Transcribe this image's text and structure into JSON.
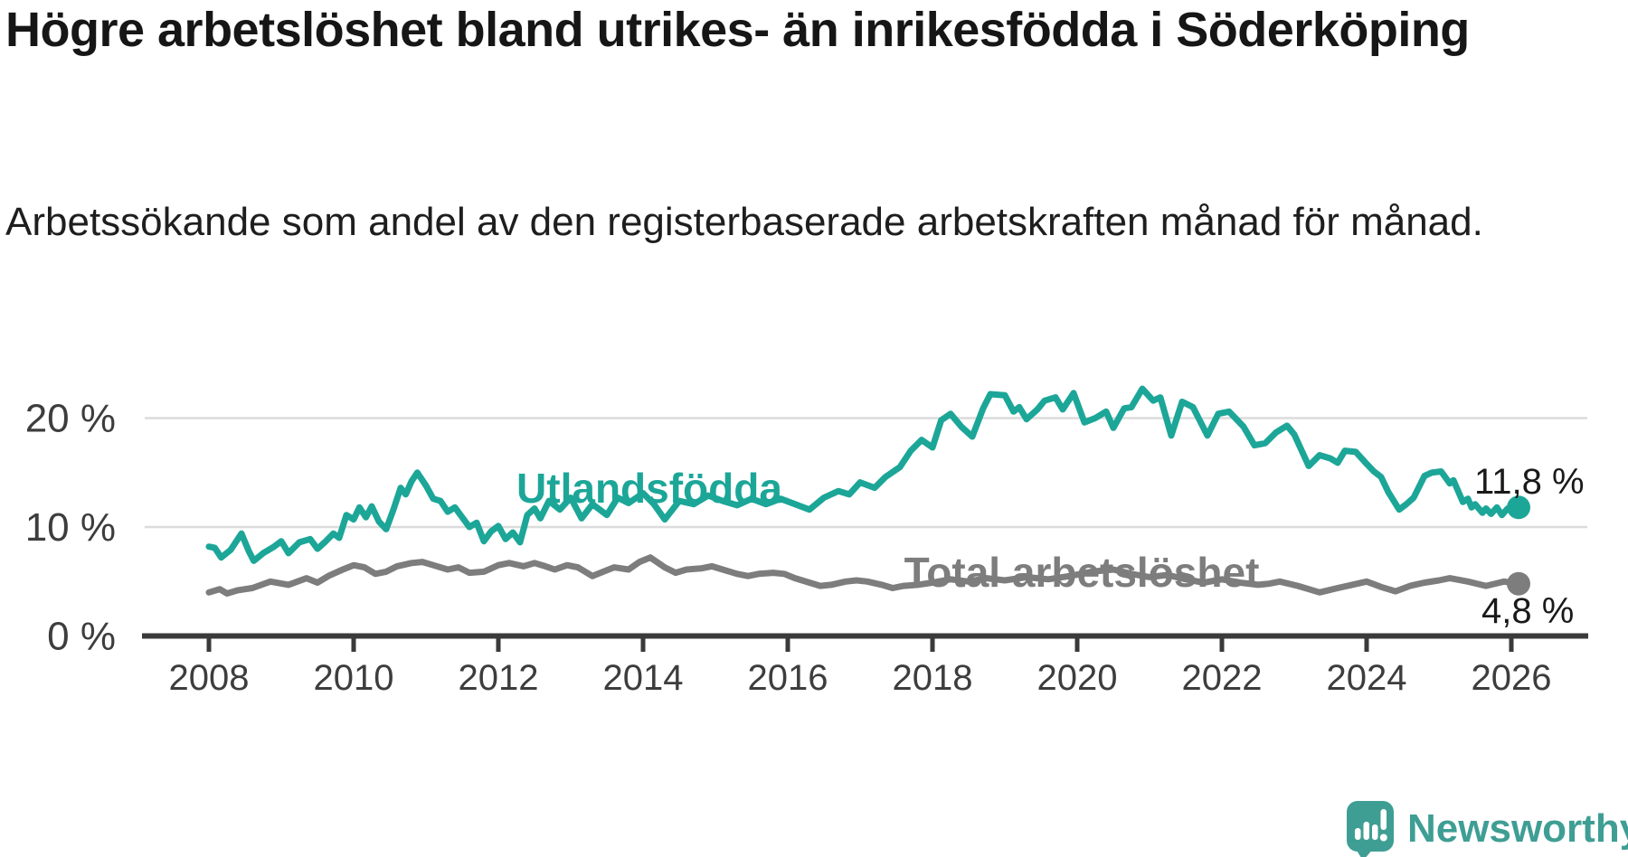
{
  "header": {
    "title": "Högre arbetslöshet bland utrikes- än inrikesfödda i Söderköping",
    "subtitle": "Arbetssökande som andel av den registerbaserade arbetskraften månad för månad."
  },
  "chart_data": {
    "type": "line",
    "title": "Högre arbetslöshet bland utrikes- än inrikesfödda i Söderköping",
    "xlabel": "",
    "ylabel": "Arbetssökande som andel av den registerbaserade arbetskraften",
    "grid": "horizontal-gridlines-at-10-and-20",
    "legend_position": "labels-on-lines",
    "xlim": [
      2007.1,
      2027.1
    ],
    "ylim": [
      0,
      23.5
    ],
    "x_ticks": [
      2008,
      2010,
      2012,
      2014,
      2016,
      2018,
      2020,
      2022,
      2024,
      2026
    ],
    "y_ticks": [
      {
        "value": 0,
        "label": "0 %"
      },
      {
        "value": 10,
        "label": "10 %"
      },
      {
        "value": 20,
        "label": "20 %"
      }
    ],
    "axis_color": "#3a3a3a",
    "gridline_color": "#dcdcdc",
    "series": [
      {
        "id": "utlandsfodda",
        "name": "Utlandsfödda",
        "color": "#1ca698",
        "end_label": "11,8 %",
        "end_value": 11.8,
        "points": [
          [
            2008.0,
            8.2
          ],
          [
            2008.08,
            8.1
          ],
          [
            2008.17,
            7.2
          ],
          [
            2008.3,
            7.9
          ],
          [
            2008.45,
            9.4
          ],
          [
            2008.55,
            7.8
          ],
          [
            2008.62,
            6.9
          ],
          [
            2008.75,
            7.6
          ],
          [
            2008.9,
            8.2
          ],
          [
            2009.0,
            8.7
          ],
          [
            2009.1,
            7.6
          ],
          [
            2009.25,
            8.6
          ],
          [
            2009.4,
            8.9
          ],
          [
            2009.5,
            8.0
          ],
          [
            2009.6,
            8.6
          ],
          [
            2009.72,
            9.4
          ],
          [
            2009.8,
            9.0
          ],
          [
            2009.9,
            11.1
          ],
          [
            2010.0,
            10.7
          ],
          [
            2010.08,
            11.8
          ],
          [
            2010.17,
            10.9
          ],
          [
            2010.25,
            11.9
          ],
          [
            2010.35,
            10.5
          ],
          [
            2010.45,
            9.8
          ],
          [
            2010.55,
            11.6
          ],
          [
            2010.65,
            13.6
          ],
          [
            2010.72,
            13.0
          ],
          [
            2010.8,
            14.2
          ],
          [
            2010.88,
            15.0
          ],
          [
            2011.0,
            13.8
          ],
          [
            2011.1,
            12.6
          ],
          [
            2011.2,
            12.4
          ],
          [
            2011.3,
            11.4
          ],
          [
            2011.4,
            11.8
          ],
          [
            2011.5,
            10.9
          ],
          [
            2011.6,
            10.0
          ],
          [
            2011.7,
            10.4
          ],
          [
            2011.8,
            8.7
          ],
          [
            2011.9,
            9.6
          ],
          [
            2012.0,
            10.1
          ],
          [
            2012.1,
            8.9
          ],
          [
            2012.2,
            9.5
          ],
          [
            2012.3,
            8.6
          ],
          [
            2012.4,
            11.1
          ],
          [
            2012.5,
            11.7
          ],
          [
            2012.58,
            10.8
          ],
          [
            2012.7,
            12.4
          ],
          [
            2012.85,
            11.6
          ],
          [
            2013.0,
            12.7
          ],
          [
            2013.15,
            10.8
          ],
          [
            2013.3,
            12.1
          ],
          [
            2013.5,
            11.1
          ],
          [
            2013.65,
            12.7
          ],
          [
            2013.8,
            12.2
          ],
          [
            2014.0,
            13.1
          ],
          [
            2014.15,
            12.1
          ],
          [
            2014.3,
            10.7
          ],
          [
            2014.5,
            12.4
          ],
          [
            2014.7,
            12.1
          ],
          [
            2014.9,
            12.9
          ],
          [
            2015.1,
            12.4
          ],
          [
            2015.3,
            12.0
          ],
          [
            2015.5,
            12.6
          ],
          [
            2015.7,
            12.1
          ],
          [
            2015.9,
            12.6
          ],
          [
            2016.1,
            12.1
          ],
          [
            2016.3,
            11.6
          ],
          [
            2016.5,
            12.7
          ],
          [
            2016.7,
            13.3
          ],
          [
            2016.85,
            13.0
          ],
          [
            2017.0,
            14.1
          ],
          [
            2017.2,
            13.6
          ],
          [
            2017.35,
            14.6
          ],
          [
            2017.55,
            15.5
          ],
          [
            2017.7,
            17.0
          ],
          [
            2017.85,
            18.0
          ],
          [
            2018.0,
            17.3
          ],
          [
            2018.12,
            19.8
          ],
          [
            2018.25,
            20.4
          ],
          [
            2018.4,
            19.2
          ],
          [
            2018.55,
            18.3
          ],
          [
            2018.7,
            20.9
          ],
          [
            2018.8,
            22.2
          ],
          [
            2019.0,
            22.1
          ],
          [
            2019.12,
            20.6
          ],
          [
            2019.2,
            21.0
          ],
          [
            2019.3,
            19.9
          ],
          [
            2019.45,
            20.8
          ],
          [
            2019.55,
            21.6
          ],
          [
            2019.7,
            21.9
          ],
          [
            2019.8,
            20.8
          ],
          [
            2019.95,
            22.3
          ],
          [
            2020.1,
            19.6
          ],
          [
            2020.25,
            20.0
          ],
          [
            2020.4,
            20.6
          ],
          [
            2020.5,
            19.1
          ],
          [
            2020.65,
            20.9
          ],
          [
            2020.75,
            21.0
          ],
          [
            2020.9,
            22.7
          ],
          [
            2021.05,
            21.6
          ],
          [
            2021.15,
            21.9
          ],
          [
            2021.3,
            18.4
          ],
          [
            2021.45,
            21.5
          ],
          [
            2021.6,
            21.0
          ],
          [
            2021.8,
            18.4
          ],
          [
            2021.95,
            20.4
          ],
          [
            2022.1,
            20.6
          ],
          [
            2022.3,
            19.2
          ],
          [
            2022.45,
            17.5
          ],
          [
            2022.6,
            17.7
          ],
          [
            2022.75,
            18.7
          ],
          [
            2022.9,
            19.3
          ],
          [
            2023.0,
            18.5
          ],
          [
            2023.2,
            15.6
          ],
          [
            2023.35,
            16.6
          ],
          [
            2023.5,
            16.3
          ],
          [
            2023.6,
            15.9
          ],
          [
            2023.7,
            17.0
          ],
          [
            2023.85,
            16.9
          ],
          [
            2024.0,
            15.8
          ],
          [
            2024.1,
            15.1
          ],
          [
            2024.2,
            14.6
          ],
          [
            2024.3,
            13.2
          ],
          [
            2024.45,
            11.6
          ],
          [
            2024.55,
            12.1
          ],
          [
            2024.65,
            12.7
          ],
          [
            2024.8,
            14.7
          ],
          [
            2024.9,
            15.0
          ],
          [
            2025.03,
            15.1
          ],
          [
            2025.15,
            14.0
          ],
          [
            2025.2,
            14.3
          ],
          [
            2025.33,
            12.3
          ],
          [
            2025.4,
            12.6
          ],
          [
            2025.45,
            11.8
          ],
          [
            2025.5,
            12.1
          ],
          [
            2025.6,
            11.3
          ],
          [
            2025.65,
            11.7
          ],
          [
            2025.72,
            11.2
          ],
          [
            2025.8,
            11.8
          ],
          [
            2025.87,
            11.1
          ],
          [
            2025.95,
            11.7
          ],
          [
            2026.02,
            11.4
          ],
          [
            2026.1,
            11.8
          ]
        ]
      },
      {
        "id": "total-arbetsloshet",
        "name": "Total arbetslöshet",
        "color": "#7d7d7d",
        "end_label": "4,8 %",
        "end_value": 4.8,
        "points": [
          [
            2008.0,
            4.0
          ],
          [
            2008.15,
            4.3
          ],
          [
            2008.25,
            3.9
          ],
          [
            2008.4,
            4.2
          ],
          [
            2008.6,
            4.4
          ],
          [
            2008.85,
            5.0
          ],
          [
            2009.1,
            4.7
          ],
          [
            2009.35,
            5.3
          ],
          [
            2009.5,
            4.9
          ],
          [
            2009.65,
            5.5
          ],
          [
            2009.85,
            6.1
          ],
          [
            2010.0,
            6.5
          ],
          [
            2010.15,
            6.3
          ],
          [
            2010.3,
            5.7
          ],
          [
            2010.45,
            5.9
          ],
          [
            2010.6,
            6.4
          ],
          [
            2010.8,
            6.7
          ],
          [
            2010.95,
            6.8
          ],
          [
            2011.1,
            6.5
          ],
          [
            2011.3,
            6.1
          ],
          [
            2011.45,
            6.3
          ],
          [
            2011.6,
            5.8
          ],
          [
            2011.8,
            5.9
          ],
          [
            2012.0,
            6.5
          ],
          [
            2012.15,
            6.7
          ],
          [
            2012.35,
            6.4
          ],
          [
            2012.5,
            6.7
          ],
          [
            2012.65,
            6.4
          ],
          [
            2012.78,
            6.1
          ],
          [
            2012.95,
            6.5
          ],
          [
            2013.1,
            6.3
          ],
          [
            2013.3,
            5.5
          ],
          [
            2013.45,
            5.9
          ],
          [
            2013.6,
            6.3
          ],
          [
            2013.8,
            6.1
          ],
          [
            2013.95,
            6.8
          ],
          [
            2014.1,
            7.2
          ],
          [
            2014.3,
            6.3
          ],
          [
            2014.45,
            5.8
          ],
          [
            2014.6,
            6.1
          ],
          [
            2014.8,
            6.2
          ],
          [
            2014.95,
            6.4
          ],
          [
            2015.1,
            6.1
          ],
          [
            2015.3,
            5.7
          ],
          [
            2015.45,
            5.5
          ],
          [
            2015.6,
            5.7
          ],
          [
            2015.8,
            5.8
          ],
          [
            2015.95,
            5.7
          ],
          [
            2016.1,
            5.3
          ],
          [
            2016.3,
            4.9
          ],
          [
            2016.45,
            4.6
          ],
          [
            2016.6,
            4.7
          ],
          [
            2016.8,
            5.0
          ],
          [
            2016.95,
            5.1
          ],
          [
            2017.1,
            5.0
          ],
          [
            2017.3,
            4.7
          ],
          [
            2017.45,
            4.4
          ],
          [
            2017.6,
            4.6
          ],
          [
            2017.8,
            4.7
          ],
          [
            2018.0,
            4.9
          ],
          [
            2018.25,
            5.2
          ],
          [
            2018.5,
            5.0
          ],
          [
            2018.75,
            5.3
          ],
          [
            2019.0,
            5.1
          ],
          [
            2019.3,
            5.4
          ],
          [
            2019.6,
            5.2
          ],
          [
            2019.9,
            5.5
          ],
          [
            2020.2,
            5.9
          ],
          [
            2020.5,
            6.1
          ],
          [
            2020.75,
            5.7
          ],
          [
            2021.0,
            5.4
          ],
          [
            2021.25,
            5.6
          ],
          [
            2021.5,
            5.2
          ],
          [
            2021.75,
            4.9
          ],
          [
            2022.0,
            5.2
          ],
          [
            2022.25,
            4.9
          ],
          [
            2022.5,
            4.7
          ],
          [
            2022.65,
            4.8
          ],
          [
            2022.8,
            5.0
          ],
          [
            2023.05,
            4.6
          ],
          [
            2023.2,
            4.3
          ],
          [
            2023.35,
            4.0
          ],
          [
            2023.6,
            4.4
          ],
          [
            2023.8,
            4.7
          ],
          [
            2024.0,
            5.0
          ],
          [
            2024.2,
            4.5
          ],
          [
            2024.4,
            4.1
          ],
          [
            2024.6,
            4.6
          ],
          [
            2024.8,
            4.9
          ],
          [
            2025.0,
            5.1
          ],
          [
            2025.15,
            5.3
          ],
          [
            2025.4,
            5.0
          ],
          [
            2025.65,
            4.6
          ],
          [
            2025.9,
            5.0
          ],
          [
            2026.1,
            4.8
          ]
        ]
      }
    ]
  },
  "branding": {
    "logo_text": "Newsworthy",
    "logo_color": "#3f9e94"
  }
}
